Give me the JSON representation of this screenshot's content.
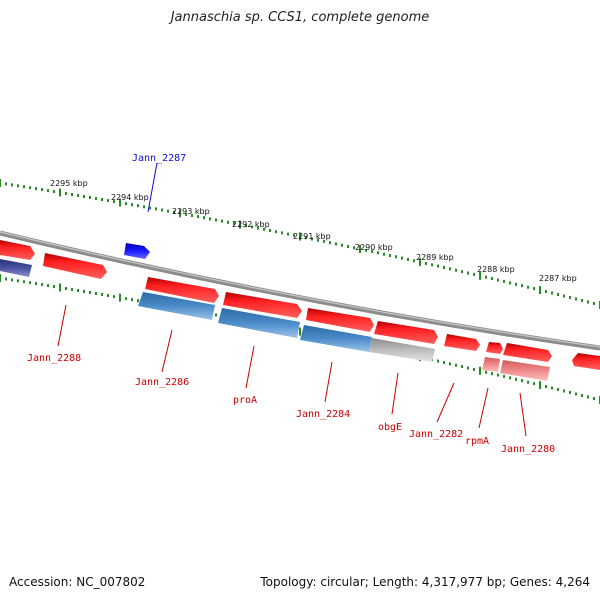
{
  "title": "Jannaschia sp. CCS1, complete genome",
  "footer": {
    "accession": "Accession: NC_007802",
    "summary": "Topology: circular; Length: 4,317,977 bp; Genes: 4,264"
  },
  "colors": {
    "forward_gene": "#ee1111",
    "reverse_gene": "#3f7fb8",
    "pseudo_gene": "#b5b5b5",
    "rna_gene": "#ee8888",
    "highlight_gene": "#1515e0",
    "tick": "#2a8a2a",
    "backbone": "#8c8c8c",
    "label_red": "#cc0000",
    "label_blue": "#1010cc"
  },
  "ticks": [
    "2295 kbp",
    "2294 kbp",
    "2293 kbp",
    "2292 kbp",
    "2291 kbp",
    "2290 kbp",
    "2289 kbp",
    "2288 kbp",
    "2287 kbp"
  ],
  "genes": [
    {
      "name": "Jann_2287",
      "strand": "forward",
      "kind": "highlight"
    },
    {
      "name": "Jann_2288",
      "strand": "forward",
      "kind": "gene"
    },
    {
      "name": "Jann_2286",
      "strand": "reverse",
      "kind": "gene"
    },
    {
      "name": "proA",
      "strand": "reverse",
      "kind": "gene"
    },
    {
      "name": "Jann_2284",
      "strand": "reverse",
      "kind": "gene"
    },
    {
      "name": "obgE",
      "strand": "reverse",
      "kind": "pseudo"
    },
    {
      "name": "Jann_2282",
      "strand": "forward",
      "kind": "gene"
    },
    {
      "name": "rpmA",
      "strand": "reverse",
      "kind": "rna"
    },
    {
      "name": "Jann_2280",
      "strand": "reverse",
      "kind": "rna"
    }
  ]
}
